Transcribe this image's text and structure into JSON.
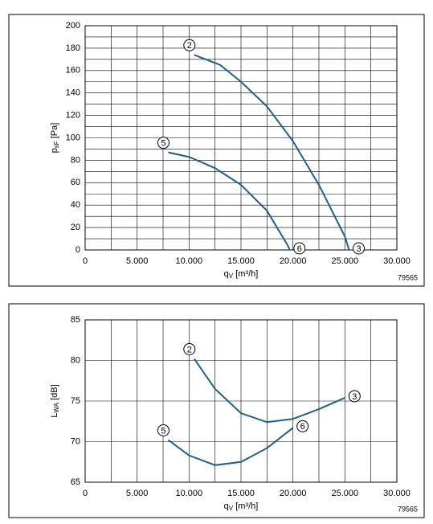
{
  "chart_data": [
    {
      "type": "line",
      "xlabel": {
        "main": "q",
        "sub": "V",
        "unit": " [m³/h]"
      },
      "ylabel": {
        "main": "p",
        "sub": "sF",
        "unit": " [Pa]"
      },
      "code": "79565",
      "xlim": [
        0,
        30000
      ],
      "xticks": [
        0,
        {
          "value": 5000,
          "label": "5.000"
        },
        {
          "value": 10000,
          "label": "10.000"
        },
        {
          "value": 15000,
          "label": "15.000"
        },
        {
          "value": 20000,
          "label": "20.000"
        },
        {
          "value": 25000,
          "label": "25.000"
        },
        {
          "value": 30000,
          "label": "30.000"
        }
      ],
      "xminor": [
        2500,
        7500,
        12500,
        17500,
        22500,
        27500
      ],
      "ylim": [
        0,
        200
      ],
      "yticks": [
        0,
        20,
        40,
        60,
        80,
        100,
        120,
        140,
        160,
        180,
        200
      ],
      "yminor": [
        10,
        30,
        50,
        70,
        90,
        110,
        130,
        150,
        170,
        190
      ],
      "series": [
        {
          "start_label": "2",
          "end_label": "3",
          "color": "#1f5f8b",
          "x": [
            10500,
            13000,
            15000,
            17500,
            20000,
            22500,
            25000,
            25400
          ],
          "values": [
            174,
            165,
            150,
            128,
            97,
            58,
            12,
            0
          ]
        },
        {
          "start_label": "5",
          "end_label": "6",
          "color": "#1f5f8b",
          "x": [
            8000,
            10000,
            12500,
            15000,
            17500,
            19500,
            19700
          ],
          "values": [
            87,
            83,
            73,
            58,
            35,
            4,
            0
          ]
        }
      ]
    },
    {
      "type": "line",
      "xlabel": {
        "main": "q",
        "sub": "V",
        "unit": " [m³/h]"
      },
      "ylabel": {
        "main": "L",
        "sub": "WA",
        "unit": " [dB]"
      },
      "code": "79565",
      "xlim": [
        0,
        30000
      ],
      "xticks": [
        0,
        {
          "value": 5000,
          "label": "5.000"
        },
        {
          "value": 10000,
          "label": "10.000"
        },
        {
          "value": 15000,
          "label": "15.000"
        },
        {
          "value": 20000,
          "label": "20.000"
        },
        {
          "value": 25000,
          "label": "25.000"
        },
        {
          "value": 30000,
          "label": "30.000"
        }
      ],
      "xminor": [
        2500,
        7500,
        12500,
        17500,
        22500,
        27500
      ],
      "ylim": [
        65,
        85
      ],
      "yticks": [
        65,
        70,
        75,
        80,
        85
      ],
      "yminor": [],
      "series": [
        {
          "start_label": "2",
          "end_label": "3",
          "color": "#1f5f8b",
          "x": [
            10500,
            12500,
            15000,
            17500,
            20000,
            22500,
            25000
          ],
          "values": [
            80.2,
            76.5,
            73.5,
            72.4,
            72.8,
            74,
            75.4
          ]
        },
        {
          "start_label": "5",
          "end_label": "6",
          "color": "#1f5f8b",
          "x": [
            8000,
            10000,
            12500,
            15000,
            17500,
            20000
          ],
          "values": [
            70.2,
            68.3,
            67.1,
            67.5,
            69.2,
            71.7
          ]
        }
      ]
    }
  ]
}
